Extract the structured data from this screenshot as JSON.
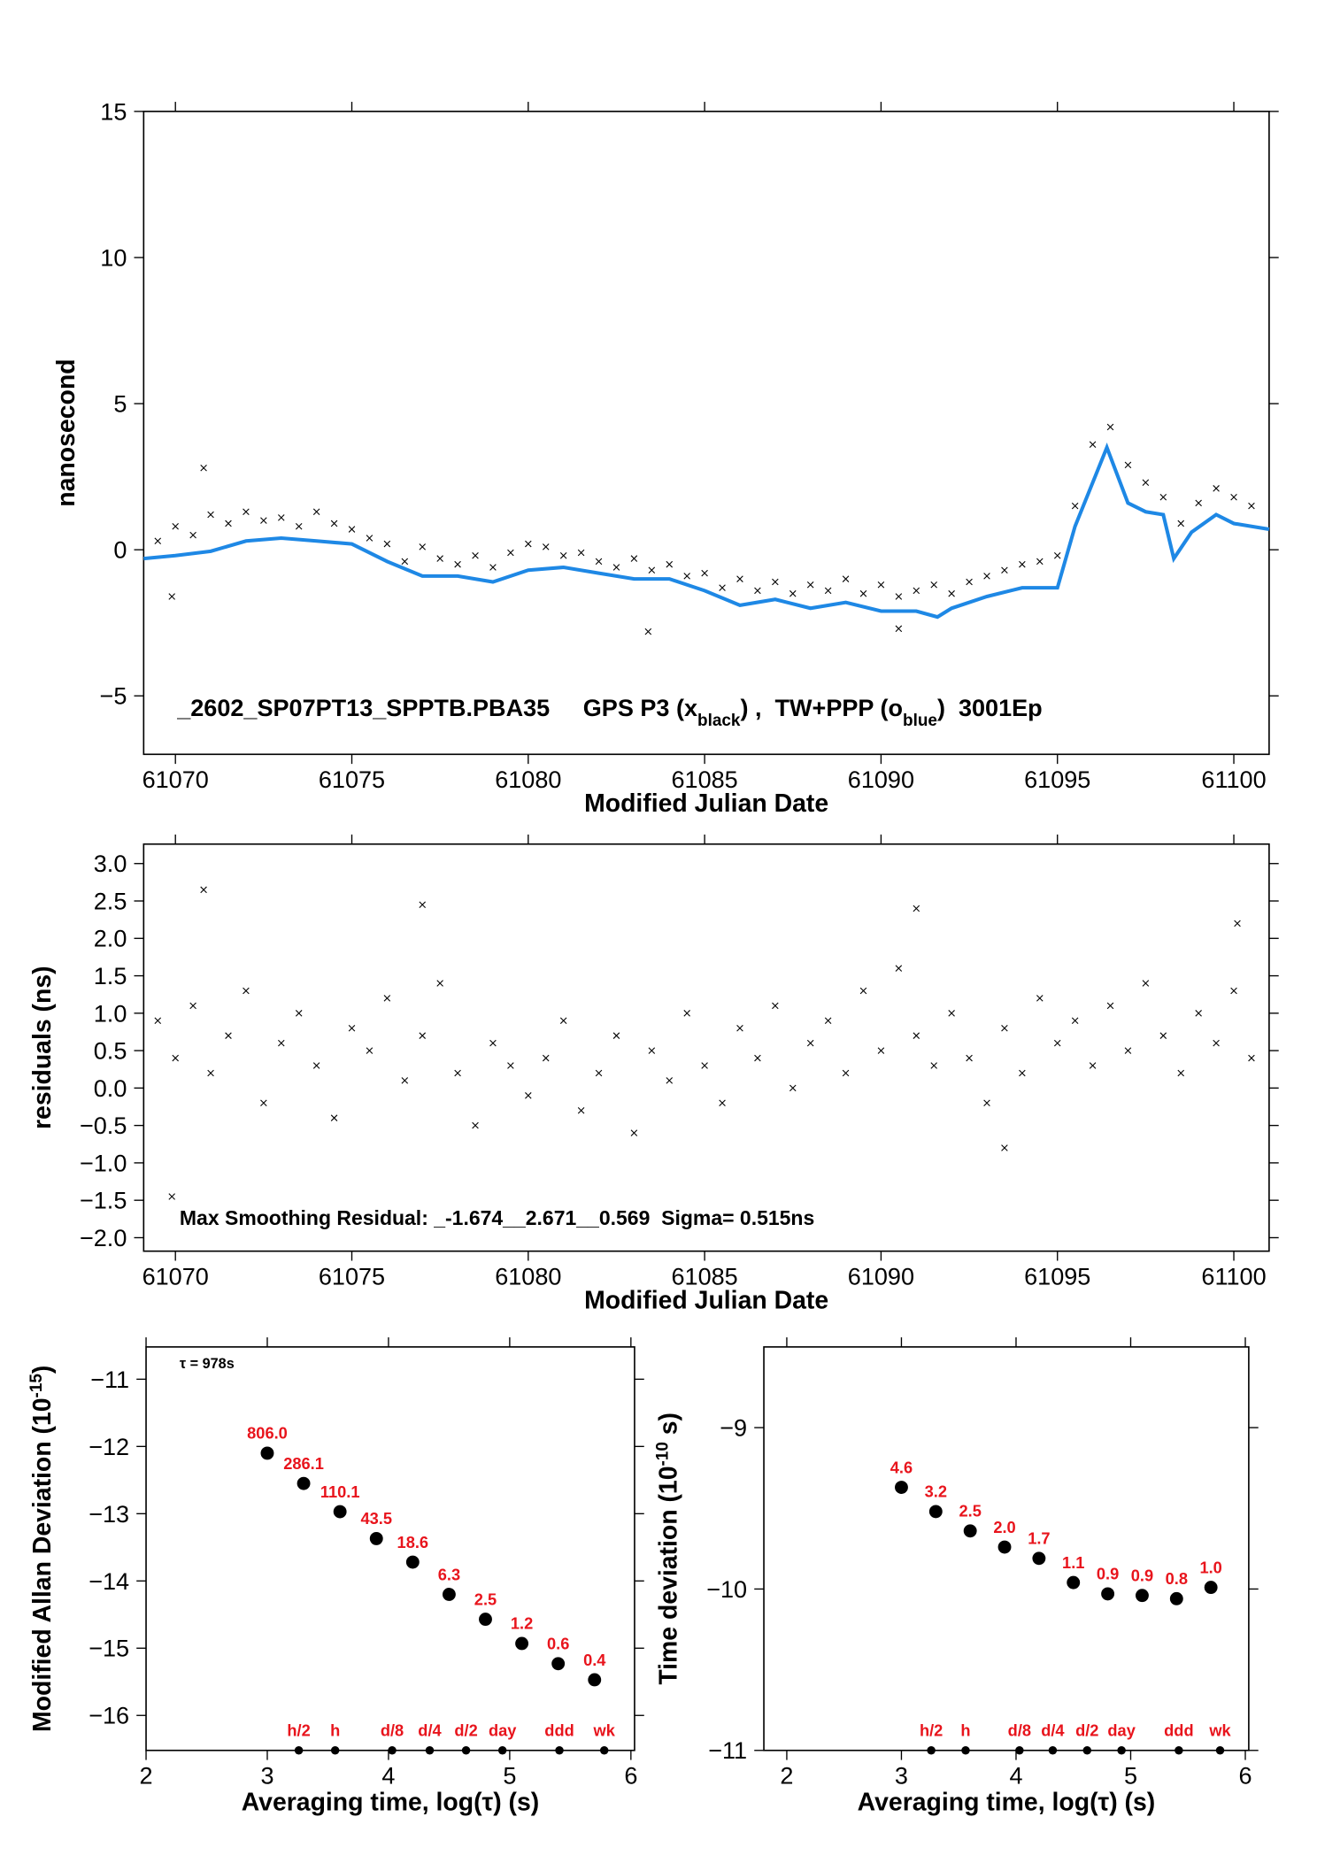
{
  "chart_data": [
    {
      "type": "scatter",
      "x_label": "Modified Julian Date",
      "y_label": [
        "nanosecond"
      ],
      "annotation": [
        "_2602_SP07PT13_SPPTB.PBA35     GPS P3 (x",
        "black",
        ") ,  TW+PPP (o",
        "blue",
        ")  3001Ep"
      ],
      "xlim": [
        61069.1,
        61101
      ],
      "ylim": [
        -7,
        15
      ],
      "xticks": [
        61070,
        61075,
        61080,
        61085,
        61090,
        61095,
        61100
      ],
      "yticks": [
        {
          "value": -5,
          "label": "−5"
        },
        0,
        5,
        10,
        15
      ],
      "series": [
        {
          "marker": "x",
          "color": "#000000",
          "x": [
            61069.5,
            61070,
            61070.5,
            61071,
            61071.5,
            61072,
            61072.5,
            61073,
            61073.5,
            61074,
            61074.5,
            61075,
            61075.5,
            61076,
            61076.5,
            61077,
            61077.5,
            61078,
            61078.5,
            61079,
            61079.5,
            61080,
            61080.5,
            61081,
            61081.5,
            61082,
            61082.5,
            61083,
            61083.5,
            61084,
            61084.5,
            61085,
            61085.5,
            61086,
            61086.5,
            61087,
            61087.5,
            61088,
            61088.5,
            61089,
            61089.5,
            61090,
            61090.5,
            61091,
            61091.5,
            61092,
            61092.5,
            61093,
            61093.5,
            61094,
            61094.5,
            61095,
            61095.5,
            61096,
            61096.5,
            61097,
            61097.5,
            61098,
            61098.5,
            61099,
            61099.5,
            61100,
            61100.5,
            61069.9,
            61070.8,
            61083.4,
            61090.5
          ],
          "values": [
            0.3,
            0.8,
            0.5,
            1.2,
            0.9,
            1.3,
            1.0,
            1.1,
            0.8,
            1.3,
            0.9,
            0.7,
            0.4,
            0.2,
            -0.4,
            0.1,
            -0.3,
            -0.5,
            -0.2,
            -0.6,
            -0.1,
            0.2,
            0.1,
            -0.2,
            -0.1,
            -0.4,
            -0.6,
            -0.3,
            -0.7,
            -0.5,
            -0.9,
            -0.8,
            -1.3,
            -1.0,
            -1.4,
            -1.1,
            -1.5,
            -1.2,
            -1.4,
            -1.0,
            -1.5,
            -1.2,
            -1.6,
            -1.4,
            -1.2,
            -1.5,
            -1.1,
            -0.9,
            -0.7,
            -0.5,
            -0.4,
            -0.2,
            1.5,
            3.6,
            4.2,
            2.9,
            2.3,
            1.8,
            0.9,
            1.6,
            2.1,
            1.8,
            1.5,
            -1.6,
            2.8,
            -2.8,
            -2.7
          ]
        },
        {
          "marker": "line",
          "color": "#1e88e5",
          "x": [
            61069.1,
            61070,
            61071,
            61072,
            61073,
            61074,
            61075,
            61076,
            61077,
            61078,
            61079,
            61080,
            61081,
            61082,
            61083,
            61084,
            61085,
            61086,
            61087,
            61088,
            61089,
            61090,
            61091,
            61091.6,
            61092,
            61093,
            61094,
            61095,
            61095.5,
            61096.4,
            61097,
            61097.5,
            61098,
            61098.3,
            61098.8,
            61099.5,
            61100,
            61100.5,
            61101
          ],
          "values": [
            -0.3,
            -0.2,
            -0.05,
            0.3,
            0.4,
            0.3,
            0.2,
            -0.4,
            -0.9,
            -0.9,
            -1.1,
            -0.7,
            -0.6,
            -0.8,
            -1.0,
            -1.0,
            -1.4,
            -1.9,
            -1.7,
            -2.0,
            -1.8,
            -2.1,
            -2.1,
            -2.3,
            -2.0,
            -1.6,
            -1.3,
            -1.3,
            0.8,
            3.5,
            1.6,
            1.3,
            1.2,
            -0.3,
            0.6,
            1.2,
            0.9,
            0.8,
            0.7
          ]
        }
      ]
    },
    {
      "type": "scatter",
      "x_label": "Modified Julian Date",
      "y_label": [
        "residuals (ns)"
      ],
      "annotation": [
        "Max Smoothing Residual: _-1.674__2.671__0.569  Sigma= 0.515ns"
      ],
      "xlim": [
        61069.1,
        61101
      ],
      "ylim": [
        -2.18,
        3.26
      ],
      "xticks": [
        61070,
        61075,
        61080,
        61085,
        61090,
        61095,
        61100
      ],
      "yticks": [
        {
          "value": -2,
          "label": "−2.0"
        },
        {
          "value": -1.5,
          "label": "−1.5"
        },
        {
          "value": -1,
          "label": "−1.0"
        },
        {
          "value": -0.5,
          "label": "−0.5"
        },
        {
          "value": 0,
          "label": "0.0"
        },
        0.5,
        {
          "value": 1,
          "label": "1.0"
        },
        1.5,
        {
          "value": 2,
          "label": "2.0"
        },
        2.5,
        {
          "value": 3,
          "label": "3.0"
        }
      ],
      "series": [
        {
          "marker": "x",
          "color": "#000000",
          "x": [
            61069.5,
            61070,
            61070.5,
            61071,
            61071.5,
            61072,
            61072.5,
            61073,
            61073.5,
            61074,
            61074.5,
            61075,
            61075.5,
            61076,
            61076.5,
            61077,
            61077.5,
            61078,
            61078.5,
            61079,
            61079.5,
            61080,
            61080.5,
            61081,
            61081.5,
            61082,
            61082.5,
            61083,
            61083.5,
            61084,
            61084.5,
            61085,
            61085.5,
            61086,
            61086.5,
            61087,
            61087.5,
            61088,
            61088.5,
            61089,
            61089.5,
            61090,
            61090.5,
            61091,
            61091.5,
            61092,
            61092.5,
            61093,
            61093.5,
            61094,
            61094.5,
            61095,
            61095.5,
            61096,
            61096.5,
            61097,
            61097.5,
            61098,
            61098.5,
            61099,
            61099.5,
            61100,
            61100.5,
            61070.8,
            61069.9,
            61077,
            61091,
            61100.1,
            61093.5
          ],
          "values": [
            0.9,
            0.4,
            1.1,
            0.2,
            0.7,
            1.3,
            -0.2,
            0.6,
            1.0,
            0.3,
            -0.4,
            0.8,
            0.5,
            1.2,
            0.1,
            0.7,
            1.4,
            0.2,
            -0.5,
            0.6,
            0.3,
            -0.1,
            0.4,
            0.9,
            -0.3,
            0.2,
            0.7,
            -0.6,
            0.5,
            0.1,
            1.0,
            0.3,
            -0.2,
            0.8,
            0.4,
            1.1,
            0.0,
            0.6,
            0.9,
            0.2,
            1.3,
            0.5,
            1.6,
            0.7,
            0.3,
            1.0,
            0.4,
            -0.2,
            0.8,
            0.2,
            1.2,
            0.6,
            0.9,
            0.3,
            1.1,
            0.5,
            1.4,
            0.7,
            0.2,
            1.0,
            0.6,
            1.3,
            0.4,
            2.65,
            -1.45,
            2.45,
            2.4,
            2.2,
            -0.8
          ]
        }
      ]
    },
    {
      "type": "scatter",
      "x_label": "Averaging time, log(τ) (s)",
      "y_label": [
        "Modified Allan Deviation (10",
        "-15",
        ")"
      ],
      "annotation": [
        "τ = 978s"
      ],
      "xlim": [
        2,
        6.03
      ],
      "ylim": [
        -16.52,
        -10.52
      ],
      "xticks": [
        2,
        3,
        4,
        5,
        6
      ],
      "yticks": [
        {
          "value": -16,
          "label": "−16"
        },
        {
          "value": -15,
          "label": "−15"
        },
        {
          "value": -14,
          "label": "−14"
        },
        {
          "value": -13,
          "label": "−13"
        },
        {
          "value": -12,
          "label": "−12"
        },
        {
          "value": -11,
          "label": "−11"
        }
      ],
      "series": [
        {
          "marker": "dot",
          "color": "#000000",
          "x": [
            3.0,
            3.3,
            3.6,
            3.9,
            4.2,
            4.5,
            4.8,
            5.1,
            5.4,
            5.7
          ],
          "values": [
            -12.1,
            -12.55,
            -12.97,
            -13.37,
            -13.72,
            -14.2,
            -14.57,
            -14.93,
            -15.23,
            -15.47
          ],
          "point_labels": [
            "806.0",
            "286.1",
            "110.1",
            "43.5",
            "18.6",
            "6.3",
            "2.5",
            "1.2",
            "0.6",
            "0.4"
          ],
          "label_color": "#e8141c"
        }
      ],
      "interval_markers": {
        "labels": [
          "h/2",
          "h",
          "d/8",
          "d/4",
          "d/2",
          "day",
          "ddd",
          "wk"
        ],
        "x": [
          3.26,
          3.56,
          4.03,
          4.34,
          4.64,
          4.94,
          5.41,
          5.78
        ]
      }
    },
    {
      "type": "scatter",
      "x_label": "Averaging time, log(τ) (s)",
      "y_label": [
        "Time deviation (10",
        "-10",
        " s)"
      ],
      "xlim": [
        1.8,
        6.03
      ],
      "ylim": [
        -11.0,
        -8.5
      ],
      "xticks": [
        2,
        3,
        4,
        5,
        6
      ],
      "yticks": [
        {
          "value": -11,
          "label": "−11"
        },
        {
          "value": -10,
          "label": "−10"
        },
        {
          "value": -9,
          "label": "−9"
        }
      ],
      "series": [
        {
          "marker": "dot",
          "color": "#000000",
          "x": [
            3.0,
            3.3,
            3.6,
            3.9,
            4.2,
            4.5,
            4.8,
            5.1,
            5.4,
            5.7
          ],
          "values": [
            -9.37,
            -9.52,
            -9.64,
            -9.74,
            -9.81,
            -9.96,
            -10.03,
            -10.04,
            -10.06,
            -9.99
          ],
          "point_labels": [
            "4.6",
            "3.2",
            "2.5",
            "2.0",
            "1.7",
            "1.1",
            "0.9",
            "0.9",
            "0.8",
            "1.0"
          ],
          "label_color": "#e8141c"
        }
      ],
      "interval_markers": {
        "labels": [
          "h/2",
          "h",
          "d/8",
          "d/4",
          "d/2",
          "day",
          "ddd",
          "wk"
        ],
        "x": [
          3.26,
          3.56,
          4.03,
          4.32,
          4.62,
          4.92,
          5.42,
          5.78
        ]
      }
    }
  ]
}
